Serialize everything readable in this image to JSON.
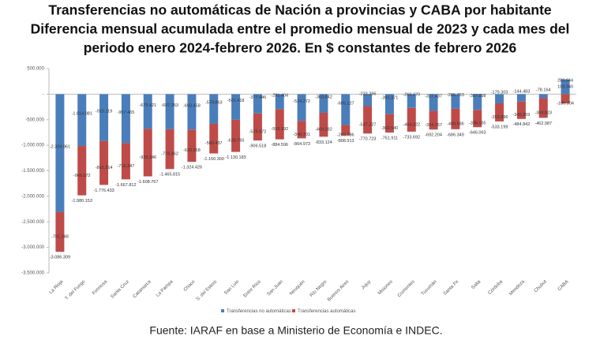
{
  "chart_data": {
    "type": "bar",
    "stacked": true,
    "title": [
      "Transferencias no automáticas de Nación a provincias y CABA por habitante",
      "Diferencia mensual acumulada entre el promedio mensual de 2023 y cada mes del",
      "periodo enero 2024-febrero 2026.  En $ constantes de febrero 2026"
    ],
    "source": "Fuente: IARAF en base a Ministerio de Economía e INDEC.",
    "categories": [
      "La Rioja",
      "T. del Fuego",
      "Formosa",
      "Santa Cruz",
      "Catamarca",
      "La Pampa",
      "Chaco",
      "S. del Estero",
      "San Luis",
      "Entre Ríos",
      "San Juan",
      "Neuquén",
      "Río Negro",
      "Buenos Aires",
      "Jujuy",
      "Misiones",
      "Corrientes",
      "Tucumán",
      "Santa Fe",
      "Salta",
      "Córdoba",
      "Mendoza",
      "Chubut",
      "CABA"
    ],
    "series": [
      {
        "name": "Transferencias no automáticas",
        "color": "#4a7ebb",
        "values": [
          -2304961,
          -1014081,
          -915119,
          -957465,
          -679421,
          -687353,
          -693458,
          -579863,
          -501418,
          -377446,
          -291404,
          -524272,
          -363842,
          -605127,
          -233396,
          -391371,
          -269370,
          -327437,
          -285763,
          -307898,
          -179303,
          -144483,
          -78164,
          289644
        ],
        "value_labels": [
          "-2.304.961",
          "-1.014.081",
          "-915.119",
          "-957.465",
          "-679.421",
          "-687.353",
          "-693.458",
          "-579.863",
          "-501.418",
          "-377.446",
          "-291.404",
          "-524.272",
          "-363.842",
          "-605.127",
          "-233.396",
          "-391.371",
          "-269.370",
          "-327.437",
          "-285.763",
          "-307.898",
          "-179.303",
          "-144.483",
          "-78.164",
          "289.644"
        ]
      },
      {
        "name": "Transferencias automáticas",
        "color": "#be4b48",
        "values": [
          -781348,
          -966072,
          -861314,
          -710347,
          -929346,
          -778462,
          -630968,
          -580437,
          -628765,
          -529072,
          -593192,
          -340701,
          -469282,
          -203786,
          -537327,
          -360540,
          -464322,
          -364767,
          -400586,
          -338165,
          -353896,
          -340359,
          -384823,
          -180304
        ],
        "value_labels": [
          "-781.348",
          "-966.072",
          "-861.314",
          "-710.347",
          "-929.346",
          "-778.462",
          "-630.968",
          "-580.437",
          "-628.765",
          "-529.072",
          "-593.192",
          "-340.701",
          "-469.282",
          "-203.786",
          "-537.327",
          "-360.540",
          "-464.322",
          "-364.767",
          "-400.586",
          "-338.165",
          "-353.896",
          "-340.359",
          "-384.823",
          "-180.304"
        ]
      }
    ],
    "totals": {
      "values": [
        -3086309,
        -1980153,
        -1776433,
        -1667812,
        -1608767,
        -1465815,
        -1324426,
        -1160300,
        -1130183,
        -906518,
        -884596,
        -864973,
        -833124,
        -808913,
        -770723,
        -751911,
        -733692,
        -692204,
        -686349,
        -646063,
        -533199,
        -484842,
        -462987,
        109340
      ],
      "value_labels": [
        "-3.086.309",
        "-1.980.153",
        "-1.776.433",
        "-1.667.812",
        "-1.608.767",
        "-1.465.815",
        "-1.324.426",
        "-1.160.300",
        "-1.130.183",
        "-906.518",
        "-884.596",
        "-864.973",
        "-833.124",
        "-808.913",
        "-770.723",
        "-751.911",
        "-733.692",
        "-692.204",
        "-686.349",
        "-646.063",
        "-533.199",
        "-484.842",
        "-462.987",
        "109.340"
      ]
    },
    "ylim": [
      -3500000,
      500000
    ],
    "yticks": [
      {
        "value": 500000,
        "label": "500.000"
      },
      {
        "value": 0,
        "label": "-"
      },
      {
        "value": -500000,
        "label": "-500.000"
      },
      {
        "value": -1000000,
        "label": "-1.000.000"
      },
      {
        "value": -1500000,
        "label": "-1.500.000"
      },
      {
        "value": -2000000,
        "label": "-2.000.000"
      },
      {
        "value": -2500000,
        "label": "-2.500.000"
      },
      {
        "value": -3000000,
        "label": "-3.000.000"
      },
      {
        "value": -3500000,
        "label": "-3.500.000"
      }
    ],
    "legend": "bottom"
  }
}
